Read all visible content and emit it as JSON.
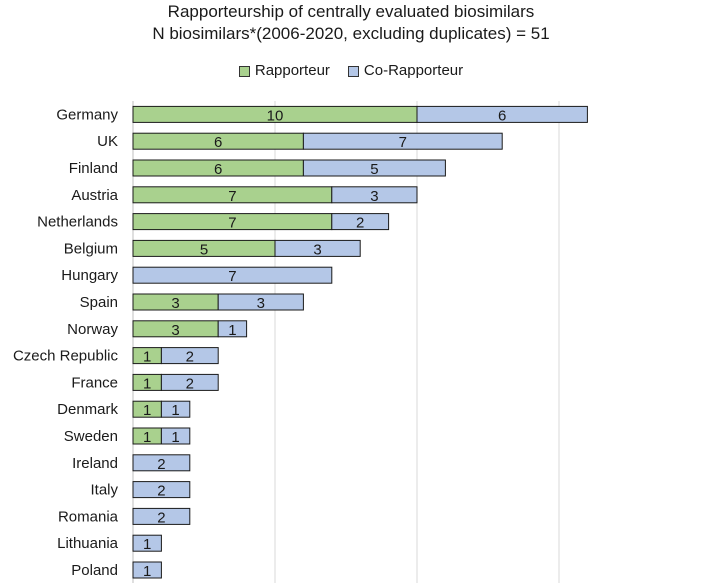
{
  "chart_data": {
    "type": "bar",
    "orientation": "horizontal",
    "stacked": true,
    "title": "Rapporteurship of centrally evaluated biosimilars",
    "subtitle": "N biosimilars*(2006-2020, excluding duplicates) = 51",
    "categories": [
      "Germany",
      "UK",
      "Finland",
      "Austria",
      "Netherlands",
      "Belgium",
      "Hungary",
      "Spain",
      "Norway",
      "Czech Republic",
      "France",
      "Denmark",
      "Sweden",
      "Ireland",
      "Italy",
      "Romania",
      "Lithuania",
      "Poland"
    ],
    "series": [
      {
        "name": "Rapporteur",
        "color": "#a9d18e",
        "values": [
          10,
          6,
          6,
          7,
          7,
          5,
          0,
          3,
          3,
          1,
          1,
          1,
          1,
          0,
          0,
          0,
          0,
          0
        ]
      },
      {
        "name": "Co-Rapporteur",
        "color": "#b4c7e7",
        "values": [
          6,
          7,
          5,
          3,
          2,
          3,
          7,
          3,
          1,
          2,
          2,
          1,
          1,
          2,
          2,
          2,
          1,
          1
        ]
      }
    ],
    "xlim": [
      0,
      20
    ],
    "gridlines": [
      5,
      10,
      15
    ],
    "grid": true,
    "legend_position": "top"
  }
}
